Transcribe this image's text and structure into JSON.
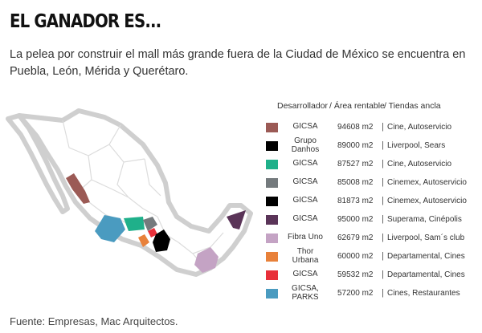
{
  "title": "EL GANADOR ES...",
  "subtitle": "La pelea por construir el mall más grande fuera de la Ciudad de México se encuentra en Puebla, León, Mérida y Querétaro.",
  "source": "Fuente: Empresas, Mac Arquitectos.",
  "table": {
    "headers": {
      "developer": "Desarrollador",
      "area": "Área rentable",
      "anchor": "Tiendas ancla"
    },
    "rows": [
      {
        "developer": [
          "GICSA"
        ],
        "area": "94608 m2",
        "anchor": "Cine, Autoservicio",
        "color": "#9b5a55"
      },
      {
        "developer": [
          "Grupo",
          "Danhos"
        ],
        "area": "89000 m2",
        "anchor": "Liverpool, Sears",
        "color": "#000000"
      },
      {
        "developer": [
          "GICSA"
        ],
        "area": "87527 m2",
        "anchor": "Cine, Autoservicio",
        "color": "#1fb08a"
      },
      {
        "developer": [
          "GICSA"
        ],
        "area": "85008 m2",
        "anchor": "Cinemex, Autoservicio",
        "color": "#747a7d"
      },
      {
        "developer": [
          "GICSA"
        ],
        "area": "81873 m2",
        "anchor": "Cinemex, Autoservicio",
        "color": "#000000"
      },
      {
        "developer": [
          "GICSA"
        ],
        "area": "95000 m2",
        "anchor": "Superama, Cinépolis",
        "color": "#5a3458"
      },
      {
        "developer": [
          "Fibra Uno"
        ],
        "area": "62679 m2",
        "anchor": "Liverpool, Sam´s club",
        "color": "#c4a3c4"
      },
      {
        "developer": [
          "Thor",
          "Urbana"
        ],
        "area": "60000 m2",
        "anchor": "Departamental, Cines",
        "color": "#e8813a"
      },
      {
        "developer": [
          "GICSA"
        ],
        "area": "59532 m2",
        "anchor": "Departamental, Cines",
        "color": "#e8303a"
      },
      {
        "developer": [
          "GICSA,",
          "PARKS"
        ],
        "area": "57200 m2",
        "anchor": "Cines, Restaurantes",
        "color": "#4a9bc0"
      }
    ]
  }
}
